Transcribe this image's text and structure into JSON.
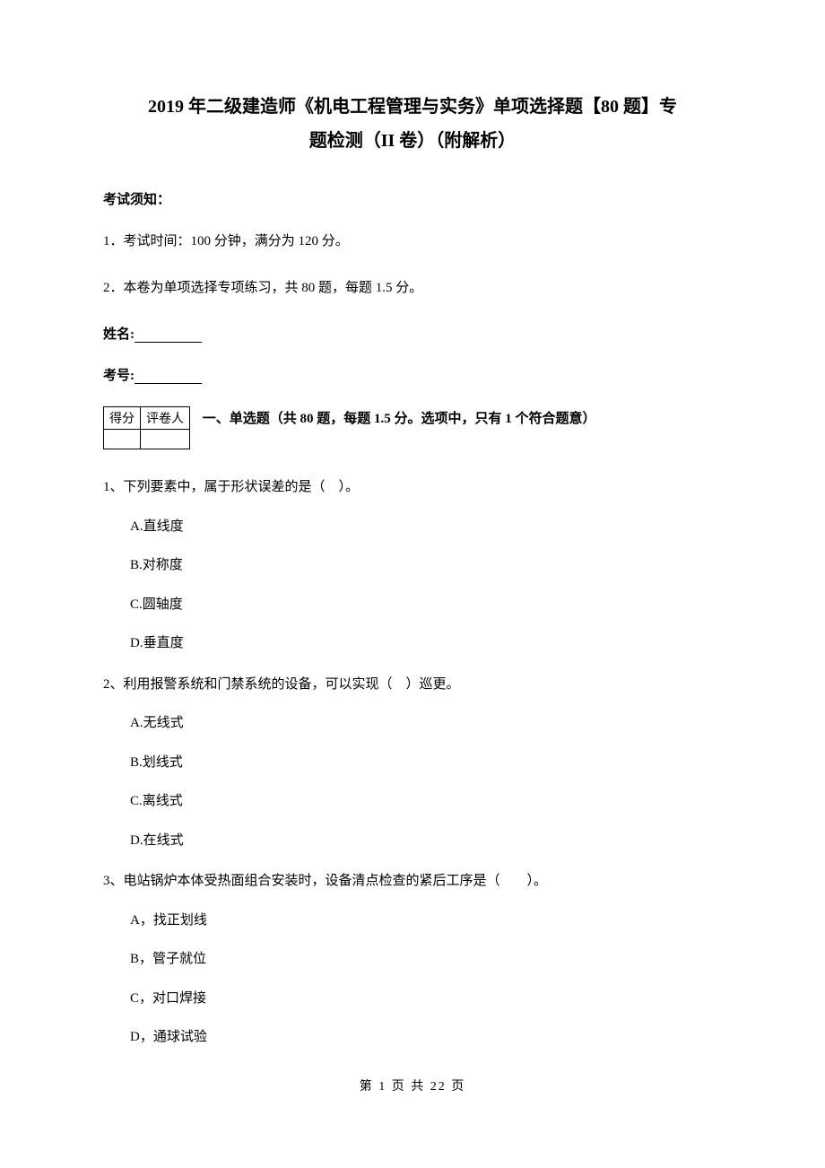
{
  "title": {
    "line1": "2019 年二级建造师《机电工程管理与实务》单项选择题【80 题】专",
    "line2": "题检测（II 卷）（附解析）"
  },
  "notice": {
    "label": "考试须知：",
    "items": [
      "1．考试时间：100 分钟，满分为 120 分。",
      "2．本卷为单项选择专项练习，共 80 题，每题 1.5 分。"
    ]
  },
  "fields": {
    "name_label": "姓名:",
    "number_label": "考号:"
  },
  "score_table": {
    "header_score": "得分",
    "header_reviewer": "评卷人"
  },
  "section": {
    "title": "一、单选题（共 80 题，每题 1.5 分。选项中，只有 1 个符合题意）"
  },
  "questions": [
    {
      "text": "1、下列要素中，属于形状误差的是（　）。",
      "options": [
        "A.直线度",
        "B.对称度",
        "C.圆轴度",
        "D.垂直度"
      ]
    },
    {
      "text": "2、利用报警系统和门禁系统的设备，可以实现（　）巡更。",
      "options": [
        "A.无线式",
        "B.划线式",
        "C.离线式",
        "D.在线式"
      ]
    },
    {
      "text": "3、电站锅炉本体受热面组合安装时，设备清点检查的紧后工序是（　　）。",
      "options": [
        "A，找正划线",
        "B，管子就位",
        "C，对口焊接",
        "D，通球试验"
      ]
    }
  ],
  "footer": {
    "text": "第 1 页 共 22 页"
  }
}
